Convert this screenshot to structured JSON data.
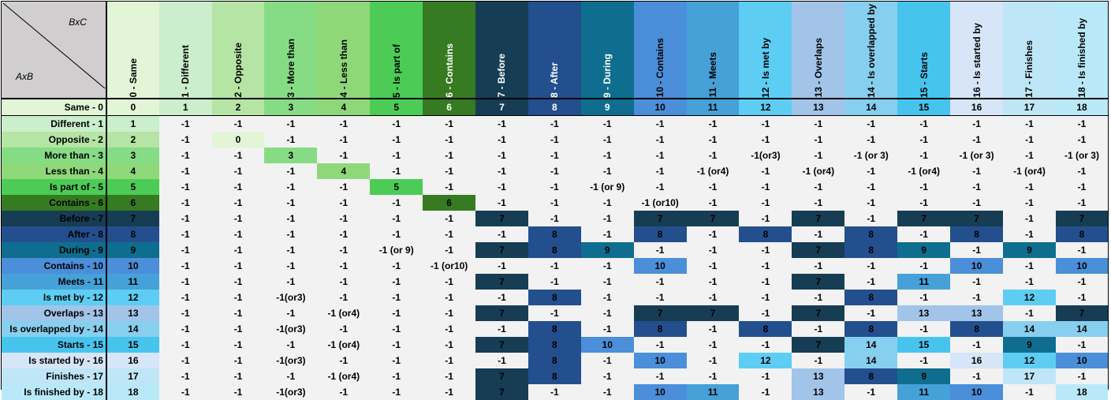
{
  "corner": {
    "top_label": "BxC",
    "bottom_label": "AxB"
  },
  "columns": [
    "0 - Same",
    "1 - Different",
    "2 - Opposite",
    "3 - More than",
    "4 - Less than",
    "5 - Is part of",
    "6 - Contains",
    "7 - Before",
    "8 - After",
    "9 - During",
    "10 - Contains",
    "11 - Meets",
    "12 - Is met by",
    "13 - Overlaps",
    "14 - Is overlapped by",
    "15 - Starts",
    "16 - Is started by",
    "17 - Finishes",
    "18 - Is finished by"
  ],
  "column_colors": [
    "#e2f5d6",
    "#cbeecd",
    "#b5e4a4",
    "#86dc85",
    "#8fd879",
    "#4ccc56",
    "#367a21",
    "#163d54",
    "#234f8e",
    "#0f6e8f",
    "#4b8ed9",
    "#45a1d8",
    "#5ecdf3",
    "#a2c4e8",
    "#87cfef",
    "#46c4ee",
    "#d6e5f7",
    "#bfe6f7",
    "#b9e9f9"
  ],
  "row_colors": [
    "#e2f5d6",
    "#cbeecd",
    "#b5e4a4",
    "#86dc85",
    "#8fd879",
    "#4ccc56",
    "#367a21",
    "#163d54",
    "#234f8e",
    "#0f6e8f",
    "#4b8ed9",
    "#45a1d8",
    "#5ecdf3",
    "#a2c4e8",
    "#87cfef",
    "#46c4ee",
    "#d6e5f7",
    "#bfe6f7",
    "#b9e9f9"
  ],
  "default_cell_color": "#f2f2f2",
  "white_text_colors": [
    "#163d54",
    "#234f8e",
    "#367a21",
    "#0f6e8f"
  ],
  "rows": [
    {
      "label": "Same - 0",
      "cells": [
        "0",
        "1",
        "2",
        "3",
        "4",
        "5",
        "6",
        "7",
        "8",
        "9",
        "10",
        "11",
        "12",
        "13",
        "14",
        "15",
        "16",
        "17",
        "18"
      ]
    },
    {
      "label": "Different - 1",
      "cells": [
        "1",
        "-1",
        "-1",
        "-1",
        "-1",
        "-1",
        "-1",
        "-1",
        "-1",
        "-1",
        "-1",
        "-1",
        "-1",
        "-1",
        "-1",
        "-1",
        "-1",
        "-1",
        "-1"
      ]
    },
    {
      "label": "Opposite - 2",
      "cells": [
        "2",
        "-1",
        "0",
        "-1",
        "-1",
        "-1",
        "-1",
        "-1",
        "-1",
        "-1",
        "-1",
        "-1",
        "-1",
        "-1",
        "-1",
        "-1",
        "-1",
        "-1",
        "-1"
      ]
    },
    {
      "label": "More than - 3",
      "cells": [
        "3",
        "-1",
        "-1",
        "3",
        "-1",
        "-1",
        "-1",
        "-1",
        "-1",
        "-1",
        "-1",
        "-1",
        "-1(or3)",
        "-1",
        "-1 (or 3)",
        "-1",
        "-1 (or 3)",
        "-1",
        "-1 (or 3)"
      ]
    },
    {
      "label": "Less than - 4",
      "cells": [
        "4",
        "-1",
        "-1",
        "-1",
        "4",
        "-1",
        "-1",
        "-1",
        "-1",
        "-1",
        "-1",
        "-1 (or4)",
        "-1",
        "-1 (or4)",
        "-1",
        "-1 (or4)",
        "-1",
        "-1 (or4)",
        "-1"
      ]
    },
    {
      "label": "Is part of - 5",
      "cells": [
        "5",
        "-1",
        "-1",
        "-1",
        "-1",
        "5",
        "-1",
        "-1",
        "-1",
        "-1 (or 9)",
        "-1",
        "-1",
        "-1",
        "-1",
        "-1",
        "-1",
        "-1",
        "-1",
        "-1"
      ]
    },
    {
      "label": "Contains - 6",
      "cells": [
        "6",
        "-1",
        "-1",
        "-1",
        "-1",
        "-1",
        "6",
        "-1",
        "-1",
        "-1",
        "-1 (or10)",
        "-1",
        "-1",
        "-1",
        "-1",
        "-1",
        "-1",
        "-1",
        "-1"
      ]
    },
    {
      "label": "Before - 7",
      "cells": [
        "7",
        "-1",
        "-1",
        "-1",
        "-1",
        "-1",
        "-1",
        "7",
        "-1",
        "-1",
        "7",
        "7",
        "-1",
        "7",
        "-1",
        "7",
        "7",
        "-1",
        "7"
      ]
    },
    {
      "label": "After - 8",
      "cells": [
        "8",
        "-1",
        "-1",
        "-1",
        "-1",
        "-1",
        "-1",
        "-1",
        "8",
        "-1",
        "8",
        "-1",
        "8",
        "-1",
        "8",
        "-1",
        "8",
        "-1",
        "8"
      ]
    },
    {
      "label": "During - 9",
      "cells": [
        "9",
        "-1",
        "-1",
        "-1",
        "-1",
        "-1 (or 9)",
        "-1",
        "7",
        "8",
        "9",
        "-1",
        "-1",
        "-1",
        "7",
        "8",
        "9",
        "-1",
        "9",
        "-1"
      ]
    },
    {
      "label": "Contains - 10",
      "cells": [
        "10",
        "-1",
        "-1",
        "-1",
        "-1",
        "-1",
        "-1 (or10)",
        "-1",
        "-1",
        "-1",
        "10",
        "-1",
        "-1",
        "-1",
        "-1",
        "-1",
        "10",
        "-1",
        "10"
      ]
    },
    {
      "label": "Meets - 11",
      "cells": [
        "11",
        "-1",
        "-1",
        "-1",
        "-1",
        "-1",
        "-1",
        "7",
        "-1",
        "-1",
        "-1",
        "-1",
        "-1",
        "7",
        "-1",
        "11",
        "-1",
        "-1",
        "-1"
      ]
    },
    {
      "label": "Is met by - 12",
      "cells": [
        "12",
        "-1",
        "-1",
        "-1(or3)",
        "-1",
        "-1",
        "-1",
        "-1",
        "8",
        "-1",
        "-1",
        "-1",
        "-1",
        "-1",
        "8",
        "-1",
        "-1",
        "12",
        "-1"
      ]
    },
    {
      "label": "Overlaps - 13",
      "cells": [
        "13",
        "-1",
        "-1",
        "-1",
        "-1 (or4)",
        "-1",
        "-1",
        "7",
        "-1",
        "-1",
        "7",
        "7",
        "-1",
        "7",
        "-1",
        "13",
        "13",
        "-1",
        "7"
      ]
    },
    {
      "label": "Is overlapped by - 14",
      "cells": [
        "14",
        "-1",
        "-1",
        "-1(or3)",
        "-1",
        "-1",
        "-1",
        "-1",
        "8",
        "-1",
        "8",
        "-1",
        "8",
        "-1",
        "8",
        "-1",
        "8",
        "14",
        "14"
      ]
    },
    {
      "label": "Starts - 15",
      "cells": [
        "15",
        "-1",
        "-1",
        "-1",
        "-1 (or4)",
        "-1",
        "-1",
        "7",
        "8",
        "10",
        "-1",
        "-1",
        "-1",
        "7",
        "14",
        "15",
        "-1",
        "9",
        "-1"
      ]
    },
    {
      "label": "Is started by - 16",
      "cells": [
        "16",
        "-1",
        "-1",
        "-1(or3)",
        "-1",
        "-1",
        "-1",
        "-1",
        "8",
        "-1",
        "10",
        "-1",
        "12",
        "-1",
        "14",
        "-1",
        "16",
        "12",
        "10"
      ]
    },
    {
      "label": "Finishes - 17",
      "cells": [
        "17",
        "-1",
        "-1",
        "-1",
        "-1 (or4)",
        "-1",
        "-1",
        "7",
        "8",
        "-1",
        "-1",
        "-1",
        "-1",
        "13",
        "8",
        "9",
        "-1",
        "17",
        "-1"
      ]
    },
    {
      "label": "Is finished by - 18",
      "cells": [
        "18",
        "-1",
        "-1",
        "-1(or3)",
        "-1",
        "-1",
        "-1",
        "7",
        "-1",
        "-1",
        "10",
        "11",
        "-1",
        "13",
        "-1",
        "11",
        "10",
        "-1",
        "18"
      ]
    }
  ]
}
